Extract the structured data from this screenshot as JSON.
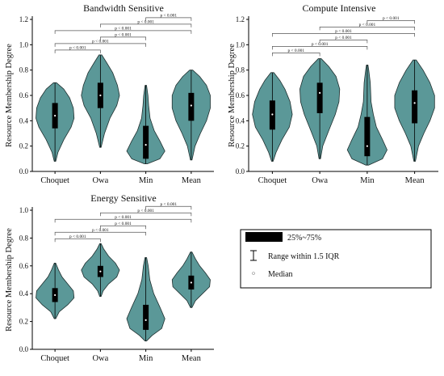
{
  "colors": {
    "violin_fill": "#5b9898",
    "violin_stroke": "#1f2f2f",
    "box": "#000000",
    "median": "#ffffff",
    "bracket": "#555555"
  },
  "legend": {
    "box_label": "25%~75%",
    "range_label": "Range within 1.5 IQR",
    "median_label": "Median"
  },
  "chart_data": [
    {
      "type": "violin",
      "title": "Bandwidth Sensitive",
      "ylabel": "Resource Membership Degree",
      "ylim": [
        0,
        1.2
      ],
      "yticks": [
        "0.0",
        "0.2",
        "0.4",
        "0.6",
        "0.8",
        "1.0",
        "1.2"
      ],
      "categories": [
        "Choquet",
        "Owa",
        "Min",
        "Mean"
      ],
      "series": [
        {
          "category": "Choquet",
          "min": 0.08,
          "q1": 0.34,
          "median": 0.44,
          "q3": 0.54,
          "max": 0.7,
          "density": [
            [
              0.08,
              0.01
            ],
            [
              0.15,
              0.04
            ],
            [
              0.25,
              0.12
            ],
            [
              0.35,
              0.22
            ],
            [
              0.42,
              0.26
            ],
            [
              0.5,
              0.25
            ],
            [
              0.58,
              0.2
            ],
            [
              0.65,
              0.12
            ],
            [
              0.7,
              0.02
            ]
          ]
        },
        {
          "category": "Owa",
          "min": 0.19,
          "q1": 0.5,
          "median": 0.6,
          "q3": 0.7,
          "max": 0.92,
          "density": [
            [
              0.19,
              0.01
            ],
            [
              0.3,
              0.06
            ],
            [
              0.42,
              0.14
            ],
            [
              0.52,
              0.24
            ],
            [
              0.6,
              0.28
            ],
            [
              0.68,
              0.25
            ],
            [
              0.78,
              0.18
            ],
            [
              0.86,
              0.09
            ],
            [
              0.92,
              0.02
            ]
          ]
        },
        {
          "category": "Min",
          "min": 0.06,
          "q1": 0.1,
          "median": 0.21,
          "q3": 0.36,
          "max": 0.68,
          "density": [
            [
              0.06,
              0.02
            ],
            [
              0.1,
              0.2
            ],
            [
              0.16,
              0.27
            ],
            [
              0.24,
              0.2
            ],
            [
              0.32,
              0.12
            ],
            [
              0.42,
              0.06
            ],
            [
              0.52,
              0.04
            ],
            [
              0.6,
              0.03
            ],
            [
              0.68,
              0.01
            ]
          ]
        },
        {
          "category": "Mean",
          "min": 0.09,
          "q1": 0.4,
          "median": 0.52,
          "q3": 0.62,
          "max": 0.8,
          "density": [
            [
              0.09,
              0.01
            ],
            [
              0.2,
              0.05
            ],
            [
              0.3,
              0.12
            ],
            [
              0.4,
              0.2
            ],
            [
              0.5,
              0.25
            ],
            [
              0.6,
              0.25
            ],
            [
              0.68,
              0.2
            ],
            [
              0.75,
              0.11
            ],
            [
              0.8,
              0.02
            ]
          ]
        }
      ],
      "significance": [
        "p < 0.001",
        "p < 0.001",
        "p < 0.001",
        "p < 0.001",
        "p < 0.001",
        "p < 0.001"
      ]
    },
    {
      "type": "violin",
      "title": "Compute Intensive",
      "ylabel": "Resource Membership Degree",
      "ylim": [
        0,
        1.2
      ],
      "yticks": [
        "0.0",
        "0.2",
        "0.4",
        "0.6",
        "0.8",
        "1.0",
        "1.2"
      ],
      "categories": [
        "Choquet",
        "Owa",
        "Min",
        "Mean"
      ],
      "series": [
        {
          "category": "Choquet",
          "min": 0.08,
          "q1": 0.33,
          "median": 0.45,
          "q3": 0.56,
          "max": 0.78,
          "density": [
            [
              0.08,
              0.01
            ],
            [
              0.15,
              0.05
            ],
            [
              0.25,
              0.13
            ],
            [
              0.35,
              0.23
            ],
            [
              0.45,
              0.27
            ],
            [
              0.55,
              0.24
            ],
            [
              0.65,
              0.17
            ],
            [
              0.72,
              0.1
            ],
            [
              0.78,
              0.02
            ]
          ]
        },
        {
          "category": "Owa",
          "min": 0.1,
          "q1": 0.46,
          "median": 0.62,
          "q3": 0.7,
          "max": 0.89,
          "density": [
            [
              0.1,
              0.01
            ],
            [
              0.2,
              0.04
            ],
            [
              0.32,
              0.12
            ],
            [
              0.45,
              0.21
            ],
            [
              0.55,
              0.26
            ],
            [
              0.65,
              0.27
            ],
            [
              0.75,
              0.22
            ],
            [
              0.83,
              0.12
            ],
            [
              0.89,
              0.02
            ]
          ]
        },
        {
          "category": "Min",
          "min": 0.05,
          "q1": 0.12,
          "median": 0.2,
          "q3": 0.43,
          "max": 0.84,
          "density": [
            [
              0.05,
              0.02
            ],
            [
              0.1,
              0.2
            ],
            [
              0.17,
              0.26
            ],
            [
              0.25,
              0.2
            ],
            [
              0.35,
              0.12
            ],
            [
              0.45,
              0.08
            ],
            [
              0.55,
              0.05
            ],
            [
              0.7,
              0.04
            ],
            [
              0.8,
              0.02
            ],
            [
              0.84,
              0.01
            ]
          ]
        },
        {
          "category": "Mean",
          "min": 0.08,
          "q1": 0.38,
          "median": 0.54,
          "q3": 0.64,
          "max": 0.88,
          "density": [
            [
              0.08,
              0.01
            ],
            [
              0.2,
              0.05
            ],
            [
              0.3,
              0.12
            ],
            [
              0.4,
              0.2
            ],
            [
              0.5,
              0.26
            ],
            [
              0.6,
              0.26
            ],
            [
              0.7,
              0.2
            ],
            [
              0.8,
              0.11
            ],
            [
              0.88,
              0.02
            ]
          ]
        }
      ],
      "significance": [
        "p < 0.001",
        "p < 0.001",
        "p < 0.001",
        "p < 0.001",
        "p < 0.001",
        "p < 0.001"
      ]
    },
    {
      "type": "violin",
      "title": "Energy Sensitive",
      "ylabel": "Resource Membership Degree",
      "ylim": [
        0,
        1.0
      ],
      "yticks": [
        "0.0",
        "0.2",
        "0.4",
        "0.6",
        "0.8",
        "1.0"
      ],
      "categories": [
        "Choquet",
        "Owa",
        "Min",
        "Mean"
      ],
      "series": [
        {
          "category": "Choquet",
          "min": 0.22,
          "q1": 0.34,
          "median": 0.39,
          "q3": 0.44,
          "max": 0.62,
          "density": [
            [
              0.22,
              0.01
            ],
            [
              0.27,
              0.06
            ],
            [
              0.32,
              0.18
            ],
            [
              0.37,
              0.27
            ],
            [
              0.42,
              0.26
            ],
            [
              0.47,
              0.18
            ],
            [
              0.52,
              0.1
            ],
            [
              0.57,
              0.05
            ],
            [
              0.62,
              0.01
            ]
          ]
        },
        {
          "category": "Owa",
          "min": 0.38,
          "q1": 0.52,
          "median": 0.56,
          "q3": 0.6,
          "max": 0.76,
          "density": [
            [
              0.38,
              0.01
            ],
            [
              0.42,
              0.04
            ],
            [
              0.47,
              0.12
            ],
            [
              0.52,
              0.24
            ],
            [
              0.57,
              0.28
            ],
            [
              0.62,
              0.22
            ],
            [
              0.67,
              0.12
            ],
            [
              0.72,
              0.05
            ],
            [
              0.76,
              0.01
            ]
          ]
        },
        {
          "category": "Min",
          "min": 0.06,
          "q1": 0.14,
          "median": 0.21,
          "q3": 0.32,
          "max": 0.66,
          "density": [
            [
              0.06,
              0.01
            ],
            [
              0.1,
              0.08
            ],
            [
              0.15,
              0.2
            ],
            [
              0.22,
              0.24
            ],
            [
              0.3,
              0.18
            ],
            [
              0.4,
              0.1
            ],
            [
              0.5,
              0.05
            ],
            [
              0.6,
              0.03
            ],
            [
              0.66,
              0.01
            ]
          ]
        },
        {
          "category": "Mean",
          "min": 0.3,
          "q1": 0.43,
          "median": 0.48,
          "q3": 0.53,
          "max": 0.7,
          "density": [
            [
              0.3,
              0.01
            ],
            [
              0.35,
              0.06
            ],
            [
              0.4,
              0.16
            ],
            [
              0.45,
              0.26
            ],
            [
              0.5,
              0.27
            ],
            [
              0.55,
              0.2
            ],
            [
              0.6,
              0.12
            ],
            [
              0.65,
              0.06
            ],
            [
              0.7,
              0.01
            ]
          ]
        }
      ],
      "significance": [
        "p < 0.001",
        "p < 0.001",
        "p < 0.001",
        "p < 0.001",
        "p < 0.001",
        "p < 0.001"
      ]
    }
  ]
}
